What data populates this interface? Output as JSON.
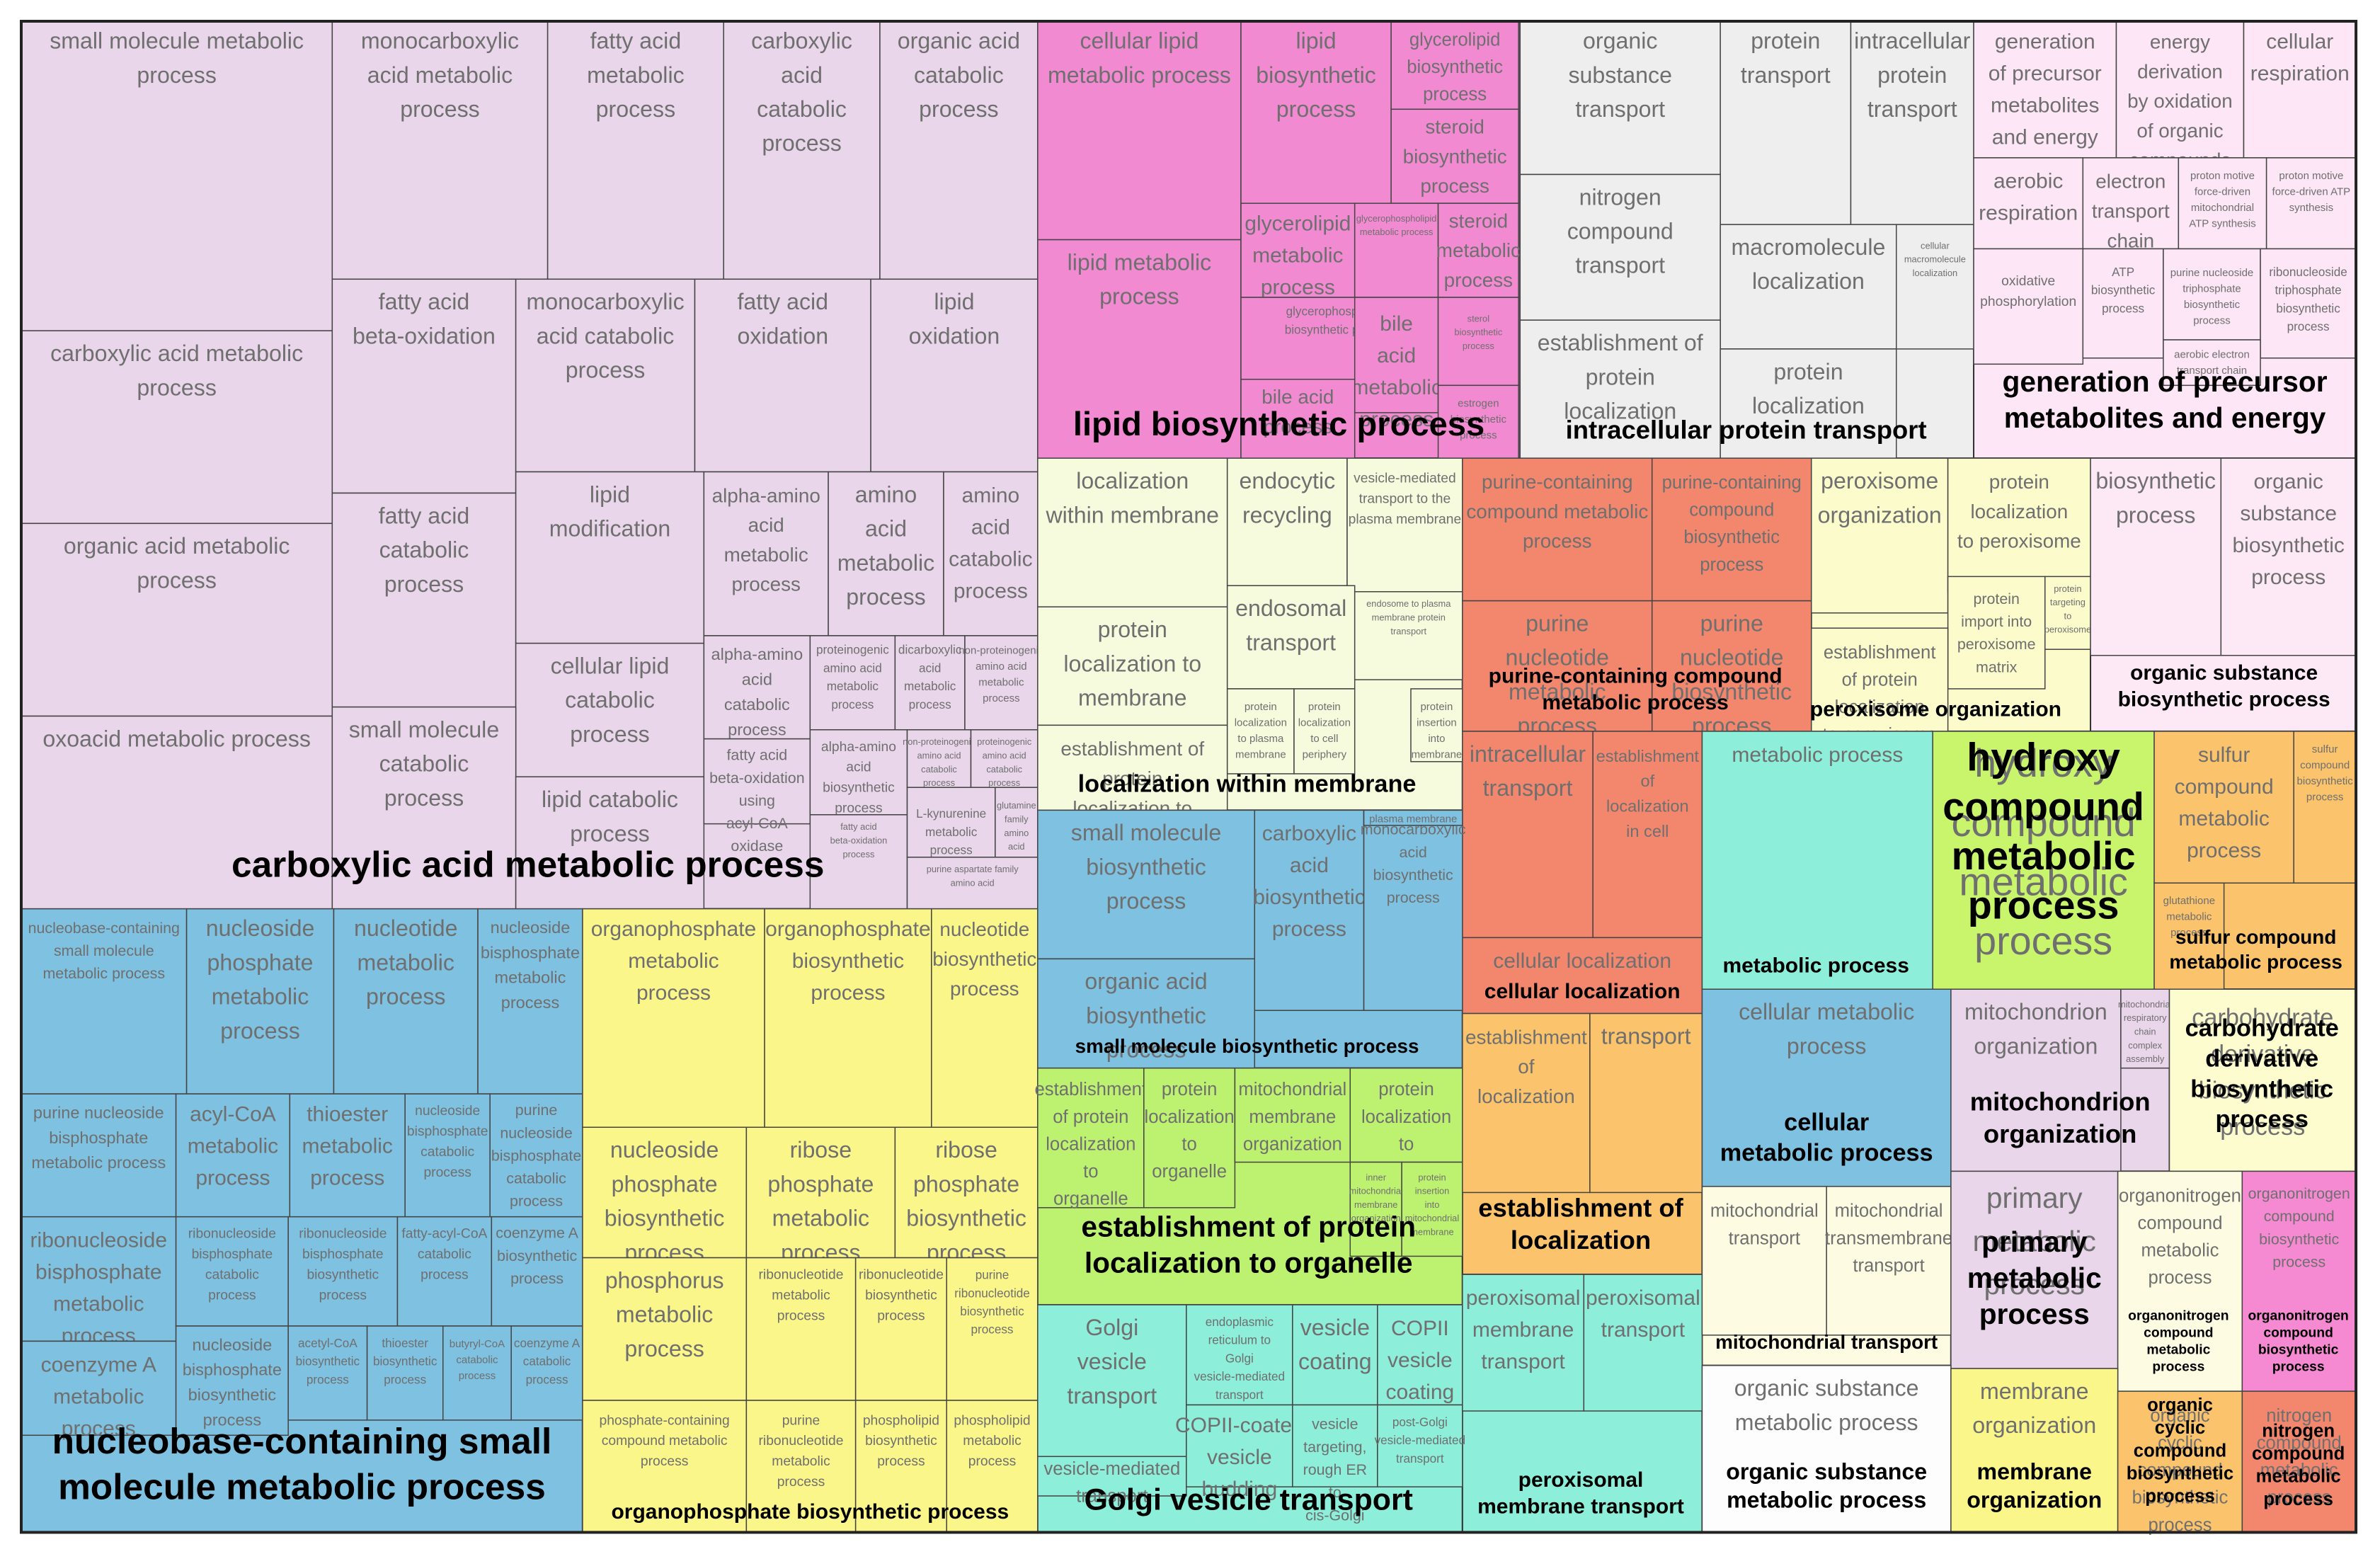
{
  "chart_data": {
    "type": "treemap",
    "title": "",
    "colors": {
      "carboxylic acid metabolic process": "#ead6ea",
      "lipid biosynthetic process": "#f28ad2",
      "organic substance transport": "#fdfdf0",
      "generation of precursor metabolites and energy": "#fde6f6",
      "nucleobase-containing small molecule metabolic process": "#7ec1e0",
      "organophosphate biosynthetic process": "#fbf68a",
      "localization within membrane": "#f6fbde",
      "purine-containing compound metabolic process": "#f2876e",
      "peroxisome organization": "#fbfbcc",
      "organic substance biosynthetic process": "#fde9f6",
      "small molecule biosynthetic process": "#7ec1e0",
      "establishment of protein localization to organelle": "#bdf270",
      "Golgi vesicle transport": "#8deed9",
      "cellular localization": "#f2876e",
      "establishment of localization": "#fbc36b",
      "peroxisomal membrane transport": "#8deed9",
      "metabolic process": "#8deed9",
      "hydroxy compound metabolic process": "#c8f56c",
      "sulfur compound metabolic process": "#fbc36b",
      "cellular metabolic process": "#7ec1e0",
      "mitochondrion organization": "#ead6ea",
      "carbohydrate derivative biosynthetic process": "#fdfccf",
      "mitochondrial transport": "#fdfce2",
      "primary metabolic process": "#ead6ea",
      "organic substance metabolic process": "#fdfdfd",
      "organonitrogen compound metabolic process": "#fdfce2",
      "organonitrogen compound biosynthetic process": "#f58ad2",
      "membrane organization": "#fbf68a",
      "organic cyclic compound biosynthetic process": "#fbc36b",
      "nitrogen compound metabolic process": "#f2876e"
    },
    "groups": [
      {
        "name": "carboxylic acid metabolic process",
        "terms": [
          "small molecule metabolic process",
          "monocarboxylic acid metabolic process",
          "fatty acid metabolic process",
          "carboxylic acid catabolic process",
          "organic acid catabolic process",
          "carboxylic acid metabolic process",
          "fatty acid beta-oxidation",
          "monocarboxylic acid catabolic process",
          "fatty acid oxidation",
          "lipid oxidation",
          "organic acid metabolic process",
          "fatty acid catabolic process",
          "lipid modification",
          "alpha-amino acid metabolic process",
          "amino acid metabolic process",
          "amino acid catabolic process",
          "cellular lipid catabolic process",
          "alpha-amino acid catabolic process",
          "proteinogenic amino acid metabolic process",
          "dicarboxylic acid metabolic process",
          "non-proteinogenic amino acid metabolic process",
          "oxoacid metabolic process",
          "small molecule catabolic process",
          "lipid catabolic process",
          "fatty acid beta-oxidation using acyl-CoA oxidase",
          "alpha-amino acid biosynthetic process",
          "non-proteinogenic amino acid catabolic process",
          "proteinogenic amino acid catabolic process",
          "fatty acid beta-oxidation process",
          "L-kynurenine metabolic process",
          "glutamine family amino acid metabolic process",
          "purine aspartate family amino acid"
        ]
      },
      {
        "name": "lipid biosynthetic process",
        "terms": [
          "cellular lipid metabolic process",
          "lipid biosynthetic process",
          "glycerolipid biosynthetic process",
          "steroid biosynthetic process",
          "lipid metabolic process",
          "glycerolipid metabolic process",
          "glycerophospholipid metabolic process",
          "steroid metabolic process",
          "glycerophospholipid biosynthetic process",
          "bile acid metabolic process",
          "sterol biosynthetic process",
          "bile acid process",
          "estrogen biosynthetic process"
        ]
      },
      {
        "name": "intracellular protein transport",
        "terms": [
          "organic substance transport",
          "protein transport",
          "intracellular protein transport",
          "nitrogen compound transport",
          "macromolecule localization",
          "cellular macromolecule localization",
          "establishment of protein localization",
          "protein localization"
        ]
      },
      {
        "name": "generation of precursor metabolites and energy",
        "terms": [
          "generation of precursor metabolites and energy",
          "energy derivation by oxidation of organic compounds",
          "cellular respiration",
          "aerobic respiration",
          "electron transport chain",
          "proton motive force-driven mitochondrial ATP synthesis",
          "proton motive force-driven ATP synthesis",
          "oxidative phosphorylation",
          "ATP biosynthetic process",
          "purine nucleoside triphosphate biosynthetic process",
          "ribonucleoside triphosphate biosynthetic process",
          "aerobic electron transport chain"
        ]
      },
      {
        "name": "nucleobase-containing small molecule metabolic process",
        "terms": [
          "nucleobase-containing small molecule metabolic process",
          "nucleoside phosphate metabolic process",
          "nucleotide metabolic process",
          "nucleoside bisphosphate metabolic process",
          "purine nucleoside bisphosphate metabolic process",
          "acyl-CoA metabolic process",
          "thioester metabolic process",
          "nucleoside bisphosphate catabolic process",
          "purine nucleoside bisphosphate catabolic process",
          "ribonucleoside bisphosphate metabolic process",
          "ribonucleoside bisphosphate catabolic process",
          "ribonucleoside bisphosphate biosynthetic process",
          "fatty-acyl-CoA catabolic process",
          "coenzyme A biosynthetic process",
          "coenzyme A metabolic process",
          "nucleoside bisphosphate biosynthetic process",
          "acetyl-CoA biosynthetic process",
          "thioester biosynthetic process",
          "butyryl-CoA catabolic process",
          "coenzyme A catabolic process"
        ]
      },
      {
        "name": "organophosphate biosynthetic process",
        "terms": [
          "organophosphate metabolic process",
          "organophosphate biosynthetic process",
          "nucleotide biosynthetic process",
          "nucleoside phosphate biosynthetic process",
          "ribose phosphate metabolic process",
          "ribose phosphate biosynthetic process",
          "phosphorus metabolic process",
          "ribonucleotide metabolic process",
          "ribonucleotide biosynthetic process",
          "purine ribonucleotide biosynthetic process",
          "phosphate-containing compound metabolic process",
          "purine ribonucleotide metabolic process",
          "phospholipid biosynthetic process",
          "phospholipid metabolic process"
        ]
      },
      {
        "name": "localization within membrane",
        "terms": [
          "localization within membrane",
          "endocytic recycling",
          "vesicle-mediated transport to the plasma membrane",
          "protein localization to membrane",
          "endosomal transport",
          "endosome to plasma membrane protein transport",
          "establishment of protein localization to membrane",
          "protein localization to plasma membrane",
          "protein localization to cell periphery",
          "protein insertion into membrane"
        ]
      },
      {
        "name": "purine-containing compound metabolic process",
        "terms": [
          "purine-containing compound metabolic process",
          "purine-containing compound biosynthetic process",
          "purine nucleotide metabolic process",
          "purine nucleotide biosynthetic process"
        ]
      },
      {
        "name": "peroxisome organization",
        "terms": [
          "peroxisome organization",
          "protein localization to peroxisome",
          "protein import into peroxisome matrix",
          "protein targeting to peroxisome",
          "establishment of protein localization to peroxisome"
        ]
      },
      {
        "name": "organic substance biosynthetic process",
        "terms": [
          "biosynthetic process",
          "organic substance biosynthetic process"
        ]
      },
      {
        "name": "cellular localization",
        "terms": [
          "intracellular transport",
          "establishment of localization in cell",
          "cellular localization"
        ]
      },
      {
        "name": "metabolic process",
        "terms": [
          "metabolic process"
        ]
      },
      {
        "name": "hydroxy compound metabolic process",
        "terms": [
          "hydroxy compound metabolic process"
        ]
      },
      {
        "name": "sulfur compound metabolic process",
        "terms": [
          "sulfur compound metabolic process",
          "sulfur compound biosynthetic process",
          "glutathione metabolic process"
        ]
      },
      {
        "name": "small molecule biosynthetic process",
        "terms": [
          "small molecule biosynthetic process",
          "carboxylic acid biosynthetic process",
          "monocarboxylic acid biosynthetic process",
          "organic acid biosynthetic process",
          "plasma membrane"
        ]
      },
      {
        "name": "establishment of protein localization to organelle",
        "terms": [
          "establishment of protein localization to organelle",
          "protein localization to organelle",
          "mitochondrial membrane organization",
          "protein localization to mitochondrion",
          "inner mitochondrial membrane organization",
          "protein insertion into mitochondrial membrane"
        ]
      },
      {
        "name": "establishment of localization",
        "terms": [
          "establishment of localization",
          "transport"
        ]
      },
      {
        "name": "cellular metabolic process",
        "terms": [
          "cellular metabolic process"
        ]
      },
      {
        "name": "mitochondrion organization",
        "terms": [
          "mitochondrion organization",
          "mitochondrial respiratory chain complex assembly"
        ]
      },
      {
        "name": "carbohydrate derivative biosynthetic process",
        "terms": [
          "carbohydrate derivative biosynthetic process"
        ]
      },
      {
        "name": "Golgi vesicle transport",
        "terms": [
          "Golgi vesicle transport",
          "endoplasmic reticulum to Golgi vesicle-mediated transport",
          "vesicle coating",
          "COPII vesicle coating",
          "vesicle-mediated transport",
          "COPII-coated vesicle budding",
          "vesicle targeting, rough ER to cis-Golgi",
          "post-Golgi vesicle-mediated transport"
        ]
      },
      {
        "name": "peroxisomal membrane transport",
        "terms": [
          "peroxisomal membrane transport",
          "peroxisomal transport"
        ]
      },
      {
        "name": "mitochondrial transport",
        "terms": [
          "mitochondrial transport",
          "mitochondrial transmembrane transport"
        ]
      },
      {
        "name": "primary metabolic process",
        "terms": [
          "primary metabolic process"
        ]
      },
      {
        "name": "organic substance metabolic process",
        "terms": [
          "organic substance metabolic process"
        ]
      },
      {
        "name": "organonitrogen compound metabolic process",
        "terms": [
          "organonitrogen compound metabolic process"
        ]
      },
      {
        "name": "organonitrogen compound biosynthetic process",
        "terms": [
          "organonitrogen compound biosynthetic process"
        ]
      },
      {
        "name": "membrane organization",
        "terms": [
          "membrane organization"
        ]
      },
      {
        "name": "organic cyclic compound biosynthetic process",
        "terms": [
          "organic cyclic compound biosynthetic process"
        ]
      },
      {
        "name": "nitrogen compound metabolic process",
        "terms": [
          "nitrogen compound metabolic process"
        ]
      }
    ]
  }
}
